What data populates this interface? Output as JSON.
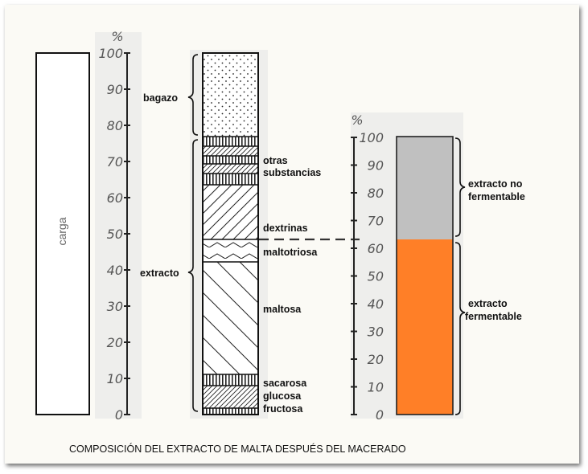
{
  "axis": {
    "unit": "%",
    "ticks": [
      "100",
      "90",
      "80",
      "70",
      "60",
      "50",
      "40",
      "30",
      "20",
      "10",
      "0"
    ]
  },
  "column1": {
    "label": "carga"
  },
  "column2": {
    "brace_labels": {
      "top": "bagazo",
      "bottom": "extracto"
    },
    "component_labels": {
      "otras_1": "otras",
      "otras_2": "substancias",
      "dextrinas": "dextrinas",
      "maltotriosa": "maltotriosa",
      "maltosa": "maltosa",
      "sacarosa": "sacarosa",
      "glucosa": "glucosa",
      "fructosa": "fructosa"
    }
  },
  "column3": {
    "labels": {
      "no_ferm_1": "extracto no",
      "no_ferm_2": "fermentable",
      "ferm_1": "extracto",
      "ferm_2": "fermentable"
    },
    "colors": {
      "no_fermentable": "#c0c0c0",
      "fermentable": "#ff7f27"
    }
  },
  "chart_data": {
    "type": "bar",
    "unit": "%",
    "ylim": [
      0,
      100
    ],
    "stacked_bars": [
      {
        "label": "carga",
        "segments": [
          {
            "name": "carga",
            "from": 0,
            "to": 100
          }
        ]
      },
      {
        "label": "",
        "segments": [
          {
            "name": "fructosa",
            "from": 0,
            "to": 2
          },
          {
            "name": "glucosa",
            "from": 2,
            "to": 8
          },
          {
            "name": "sacarosa",
            "from": 8,
            "to": 11
          },
          {
            "name": "maltosa",
            "from": 11,
            "to": 42
          },
          {
            "name": "maltotriosa",
            "from": 42,
            "to": 48
          },
          {
            "name": "dextrinas",
            "from": 48,
            "to": 64
          },
          {
            "name": "otras substancias",
            "from": 64,
            "to": 77
          },
          {
            "name": "bagazo",
            "from": 77,
            "to": 100
          }
        ]
      },
      {
        "label": "",
        "segments": [
          {
            "name": "extracto fermentable",
            "from": 0,
            "to": 62
          },
          {
            "name": "extracto no fermentable",
            "from": 62,
            "to": 100
          }
        ]
      }
    ]
  },
  "caption": "COMPOSICIÓN DEL EXTRACTO DE MALTA DESPUÉS DEL MACERADO"
}
